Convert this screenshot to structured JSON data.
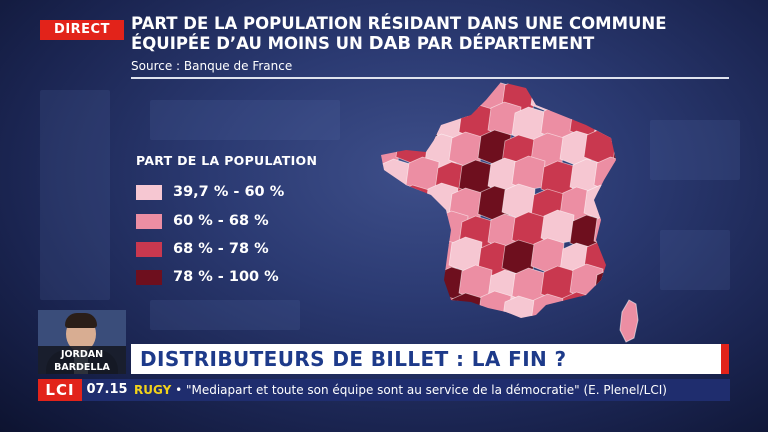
{
  "badge": {
    "label": "DIRECT",
    "color": "#e2231a"
  },
  "title": {
    "line1": "PART DE LA POPULATION RÉSIDANT DANS UNE COMMUNE",
    "line2_before": "ÉQUIPÉE D’AU MOINS UN ",
    "line2_highlight": "DAB",
    "line2_after": " PAR DÉPARTEMENT",
    "source": "Source : Banque de France"
  },
  "legend": {
    "title": "PART DE LA POPULATION",
    "items": [
      {
        "label": "39,7 % - 60 %",
        "color": "#f6c7d2"
      },
      {
        "label": "60 % - 68 %",
        "color": "#ec8ea3"
      },
      {
        "label": "68 % - 78 %",
        "color": "#c9384f"
      },
      {
        "label": "78 % - 100 %",
        "color": "#6e0f1e"
      }
    ]
  },
  "map": {
    "departments": [
      {
        "c": 0,
        "l": 3
      },
      {
        "c": 1,
        "l": 2
      },
      {
        "c": 2,
        "l": 0
      },
      {
        "c": 3,
        "l": 3
      },
      {
        "c": 4,
        "l": 1
      },
      {
        "c": 5,
        "l": 2
      },
      {
        "c": 6,
        "l": 0
      },
      {
        "c": 7,
        "l": 0
      },
      {
        "c": 8,
        "l": 1
      },
      {
        "c": 9,
        "l": 2
      },
      {
        "c": 10,
        "l": 1
      },
      {
        "c": 11,
        "l": 3
      },
      {
        "c": 12,
        "l": 0
      },
      {
        "c": 13,
        "l": 2
      },
      {
        "c": 14,
        "l": 1
      },
      {
        "c": 15,
        "l": 0
      },
      {
        "c": 16,
        "l": 1
      },
      {
        "c": 17,
        "l": 2
      },
      {
        "c": 18,
        "l": 0
      },
      {
        "c": 19,
        "l": 3
      },
      {
        "c": 20,
        "l": 1
      },
      {
        "c": 21,
        "l": 2
      },
      {
        "c": 22,
        "l": 0
      },
      {
        "c": 23,
        "l": 1
      },
      {
        "c": 24,
        "l": 3
      },
      {
        "c": 25,
        "l": 2
      },
      {
        "c": 26,
        "l": 1
      },
      {
        "c": 27,
        "l": 0
      },
      {
        "c": 28,
        "l": 2
      },
      {
        "c": 29,
        "l": 3
      }
    ]
  },
  "presenter": {
    "first": "JORDAN",
    "last": "BARDELLA"
  },
  "headline": {
    "text": "DISTRIBUTEURS DE BILLET : LA FIN ?"
  },
  "ticker": {
    "channel": "LCI",
    "time": "07.15",
    "keyword": "RUGY",
    "text": " • \"Mediapart et toute son équipe sont au service de la démocratie\" (E. Plenel/LCI)"
  }
}
